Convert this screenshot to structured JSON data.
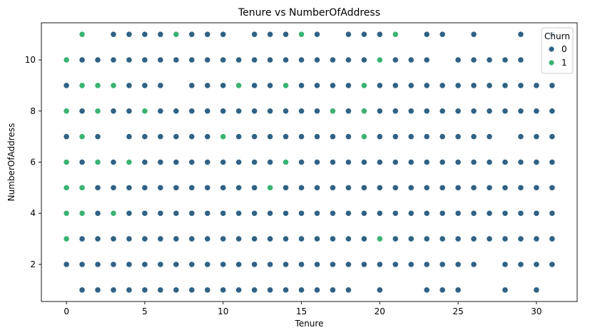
{
  "chart_data": {
    "type": "scatter",
    "title": "Tenure vs NumberOfAddress",
    "xlabel": "Tenure",
    "ylabel": "NumberOfAddress",
    "xlim": [
      -1.6,
      32.6
    ],
    "ylim": [
      0.55,
      11.45
    ],
    "xticks": [
      0,
      5,
      10,
      15,
      20,
      25,
      30
    ],
    "yticks": [
      2,
      4,
      6,
      8,
      10
    ],
    "grid": false,
    "legend": {
      "title": "Churn",
      "placement": "top-right"
    },
    "series": [
      {
        "name": "0",
        "color": "#2f6284",
        "points": [
          [
            3,
            11
          ],
          [
            4,
            11
          ],
          [
            5,
            11
          ],
          [
            6,
            11
          ],
          [
            8,
            11
          ],
          [
            9,
            11
          ],
          [
            10,
            11
          ],
          [
            12,
            11
          ],
          [
            13,
            11
          ],
          [
            14,
            11
          ],
          [
            16,
            11
          ],
          [
            18,
            11
          ],
          [
            19,
            11
          ],
          [
            20,
            11
          ],
          [
            23,
            11
          ],
          [
            24,
            11
          ],
          [
            26,
            11
          ],
          [
            29,
            11
          ],
          [
            31,
            11
          ],
          [
            1,
            10
          ],
          [
            2,
            10
          ],
          [
            3,
            10
          ],
          [
            4,
            10
          ],
          [
            5,
            10
          ],
          [
            6,
            10
          ],
          [
            7,
            10
          ],
          [
            8,
            10
          ],
          [
            9,
            10
          ],
          [
            10,
            10
          ],
          [
            11,
            10
          ],
          [
            12,
            10
          ],
          [
            13,
            10
          ],
          [
            14,
            10
          ],
          [
            15,
            10
          ],
          [
            16,
            10
          ],
          [
            17,
            10
          ],
          [
            18,
            10
          ],
          [
            19,
            10
          ],
          [
            21,
            10
          ],
          [
            22,
            10
          ],
          [
            23,
            10
          ],
          [
            25,
            10
          ],
          [
            26,
            10
          ],
          [
            27,
            10
          ],
          [
            28,
            10
          ],
          [
            29,
            10
          ],
          [
            0,
            9
          ],
          [
            2,
            9
          ],
          [
            4,
            9
          ],
          [
            5,
            9
          ],
          [
            6,
            9
          ],
          [
            8,
            9
          ],
          [
            9,
            9
          ],
          [
            10,
            9
          ],
          [
            12,
            9
          ],
          [
            13,
            9
          ],
          [
            15,
            9
          ],
          [
            16,
            9
          ],
          [
            17,
            9
          ],
          [
            18,
            9
          ],
          [
            20,
            9
          ],
          [
            21,
            9
          ],
          [
            22,
            9
          ],
          [
            23,
            9
          ],
          [
            24,
            9
          ],
          [
            25,
            9
          ],
          [
            26,
            9
          ],
          [
            27,
            9
          ],
          [
            28,
            9
          ],
          [
            29,
            9
          ],
          [
            30,
            9
          ],
          [
            31,
            9
          ],
          [
            1,
            8
          ],
          [
            3,
            8
          ],
          [
            4,
            8
          ],
          [
            6,
            8
          ],
          [
            7,
            8
          ],
          [
            8,
            8
          ],
          [
            9,
            8
          ],
          [
            10,
            8
          ],
          [
            11,
            8
          ],
          [
            12,
            8
          ],
          [
            13,
            8
          ],
          [
            14,
            8
          ],
          [
            15,
            8
          ],
          [
            16,
            8
          ],
          [
            18,
            8
          ],
          [
            20,
            8
          ],
          [
            21,
            8
          ],
          [
            22,
            8
          ],
          [
            23,
            8
          ],
          [
            24,
            8
          ],
          [
            25,
            8
          ],
          [
            26,
            8
          ],
          [
            27,
            8
          ],
          [
            28,
            8
          ],
          [
            29,
            8
          ],
          [
            30,
            8
          ],
          [
            31,
            8
          ],
          [
            0,
            7
          ],
          [
            2,
            7
          ],
          [
            4,
            7
          ],
          [
            5,
            7
          ],
          [
            6,
            7
          ],
          [
            7,
            7
          ],
          [
            8,
            7
          ],
          [
            9,
            7
          ],
          [
            11,
            7
          ],
          [
            12,
            7
          ],
          [
            13,
            7
          ],
          [
            14,
            7
          ],
          [
            15,
            7
          ],
          [
            16,
            7
          ],
          [
            17,
            7
          ],
          [
            18,
            7
          ],
          [
            20,
            7
          ],
          [
            21,
            7
          ],
          [
            22,
            7
          ],
          [
            23,
            7
          ],
          [
            24,
            7
          ],
          [
            25,
            7
          ],
          [
            26,
            7
          ],
          [
            27,
            7
          ],
          [
            29,
            7
          ],
          [
            30,
            7
          ],
          [
            31,
            7
          ],
          [
            1,
            6
          ],
          [
            3,
            6
          ],
          [
            5,
            6
          ],
          [
            6,
            6
          ],
          [
            7,
            6
          ],
          [
            8,
            6
          ],
          [
            9,
            6
          ],
          [
            10,
            6
          ],
          [
            11,
            6
          ],
          [
            12,
            6
          ],
          [
            13,
            6
          ],
          [
            15,
            6
          ],
          [
            16,
            6
          ],
          [
            17,
            6
          ],
          [
            18,
            6
          ],
          [
            19,
            6
          ],
          [
            20,
            6
          ],
          [
            21,
            6
          ],
          [
            22,
            6
          ],
          [
            23,
            6
          ],
          [
            24,
            6
          ],
          [
            25,
            6
          ],
          [
            26,
            6
          ],
          [
            27,
            6
          ],
          [
            28,
            6
          ],
          [
            29,
            6
          ],
          [
            30,
            6
          ],
          [
            31,
            6
          ],
          [
            2,
            5
          ],
          [
            3,
            5
          ],
          [
            4,
            5
          ],
          [
            5,
            5
          ],
          [
            6,
            5
          ],
          [
            7,
            5
          ],
          [
            8,
            5
          ],
          [
            9,
            5
          ],
          [
            10,
            5
          ],
          [
            11,
            5
          ],
          [
            12,
            5
          ],
          [
            14,
            5
          ],
          [
            15,
            5
          ],
          [
            16,
            5
          ],
          [
            17,
            5
          ],
          [
            18,
            5
          ],
          [
            19,
            5
          ],
          [
            20,
            5
          ],
          [
            21,
            5
          ],
          [
            22,
            5
          ],
          [
            23,
            5
          ],
          [
            24,
            5
          ],
          [
            25,
            5
          ],
          [
            26,
            5
          ],
          [
            27,
            5
          ],
          [
            28,
            5
          ],
          [
            29,
            5
          ],
          [
            30,
            5
          ],
          [
            31,
            5
          ],
          [
            2,
            4
          ],
          [
            4,
            4
          ],
          [
            5,
            4
          ],
          [
            6,
            4
          ],
          [
            7,
            4
          ],
          [
            8,
            4
          ],
          [
            9,
            4
          ],
          [
            10,
            4
          ],
          [
            11,
            4
          ],
          [
            12,
            4
          ],
          [
            13,
            4
          ],
          [
            14,
            4
          ],
          [
            15,
            4
          ],
          [
            16,
            4
          ],
          [
            17,
            4
          ],
          [
            18,
            4
          ],
          [
            19,
            4
          ],
          [
            20,
            4
          ],
          [
            21,
            4
          ],
          [
            22,
            4
          ],
          [
            23,
            4
          ],
          [
            24,
            4
          ],
          [
            25,
            4
          ],
          [
            26,
            4
          ],
          [
            27,
            4
          ],
          [
            28,
            4
          ],
          [
            29,
            4
          ],
          [
            30,
            4
          ],
          [
            31,
            4
          ],
          [
            1,
            3
          ],
          [
            2,
            3
          ],
          [
            3,
            3
          ],
          [
            4,
            3
          ],
          [
            5,
            3
          ],
          [
            6,
            3
          ],
          [
            7,
            3
          ],
          [
            8,
            3
          ],
          [
            9,
            3
          ],
          [
            10,
            3
          ],
          [
            11,
            3
          ],
          [
            12,
            3
          ],
          [
            13,
            3
          ],
          [
            14,
            3
          ],
          [
            15,
            3
          ],
          [
            16,
            3
          ],
          [
            17,
            3
          ],
          [
            18,
            3
          ],
          [
            19,
            3
          ],
          [
            21,
            3
          ],
          [
            22,
            3
          ],
          [
            23,
            3
          ],
          [
            24,
            3
          ],
          [
            25,
            3
          ],
          [
            26,
            3
          ],
          [
            27,
            3
          ],
          [
            28,
            3
          ],
          [
            29,
            3
          ],
          [
            30,
            3
          ],
          [
            31,
            3
          ],
          [
            0,
            2
          ],
          [
            1,
            2
          ],
          [
            2,
            2
          ],
          [
            3,
            2
          ],
          [
            4,
            2
          ],
          [
            5,
            2
          ],
          [
            6,
            2
          ],
          [
            7,
            2
          ],
          [
            8,
            2
          ],
          [
            9,
            2
          ],
          [
            10,
            2
          ],
          [
            11,
            2
          ],
          [
            12,
            2
          ],
          [
            13,
            2
          ],
          [
            14,
            2
          ],
          [
            15,
            2
          ],
          [
            16,
            2
          ],
          [
            17,
            2
          ],
          [
            18,
            2
          ],
          [
            19,
            2
          ],
          [
            20,
            2
          ],
          [
            21,
            2
          ],
          [
            22,
            2
          ],
          [
            23,
            2
          ],
          [
            24,
            2
          ],
          [
            25,
            2
          ],
          [
            26,
            2
          ],
          [
            28,
            2
          ],
          [
            29,
            2
          ],
          [
            30,
            2
          ],
          [
            31,
            2
          ],
          [
            1,
            1
          ],
          [
            2,
            1
          ],
          [
            3,
            1
          ],
          [
            4,
            1
          ],
          [
            5,
            1
          ],
          [
            6,
            1
          ],
          [
            7,
            1
          ],
          [
            8,
            1
          ],
          [
            9,
            1
          ],
          [
            10,
            1
          ],
          [
            11,
            1
          ],
          [
            12,
            1
          ],
          [
            13,
            1
          ],
          [
            14,
            1
          ],
          [
            15,
            1
          ],
          [
            16,
            1
          ],
          [
            17,
            1
          ],
          [
            18,
            1
          ],
          [
            20,
            1
          ],
          [
            23,
            1
          ],
          [
            24,
            1
          ],
          [
            25,
            1
          ],
          [
            28,
            1
          ],
          [
            30,
            1
          ]
        ]
      },
      {
        "name": "1",
        "color": "#3bb273",
        "points": [
          [
            1,
            11
          ],
          [
            7,
            11
          ],
          [
            15,
            11
          ],
          [
            21,
            11
          ],
          [
            0,
            10
          ],
          [
            20,
            10
          ],
          [
            1,
            9
          ],
          [
            2,
            9
          ],
          [
            3,
            9
          ],
          [
            11,
            9
          ],
          [
            14,
            9
          ],
          [
            19,
            9
          ],
          [
            0,
            8
          ],
          [
            2,
            8
          ],
          [
            5,
            8
          ],
          [
            17,
            8
          ],
          [
            19,
            8
          ],
          [
            1,
            7
          ],
          [
            10,
            7
          ],
          [
            19,
            7
          ],
          [
            0,
            6
          ],
          [
            2,
            6
          ],
          [
            4,
            6
          ],
          [
            14,
            6
          ],
          [
            0,
            5
          ],
          [
            1,
            5
          ],
          [
            13,
            5
          ],
          [
            0,
            4
          ],
          [
            1,
            4
          ],
          [
            3,
            4
          ],
          [
            0,
            3
          ],
          [
            20,
            3
          ]
        ]
      }
    ]
  }
}
